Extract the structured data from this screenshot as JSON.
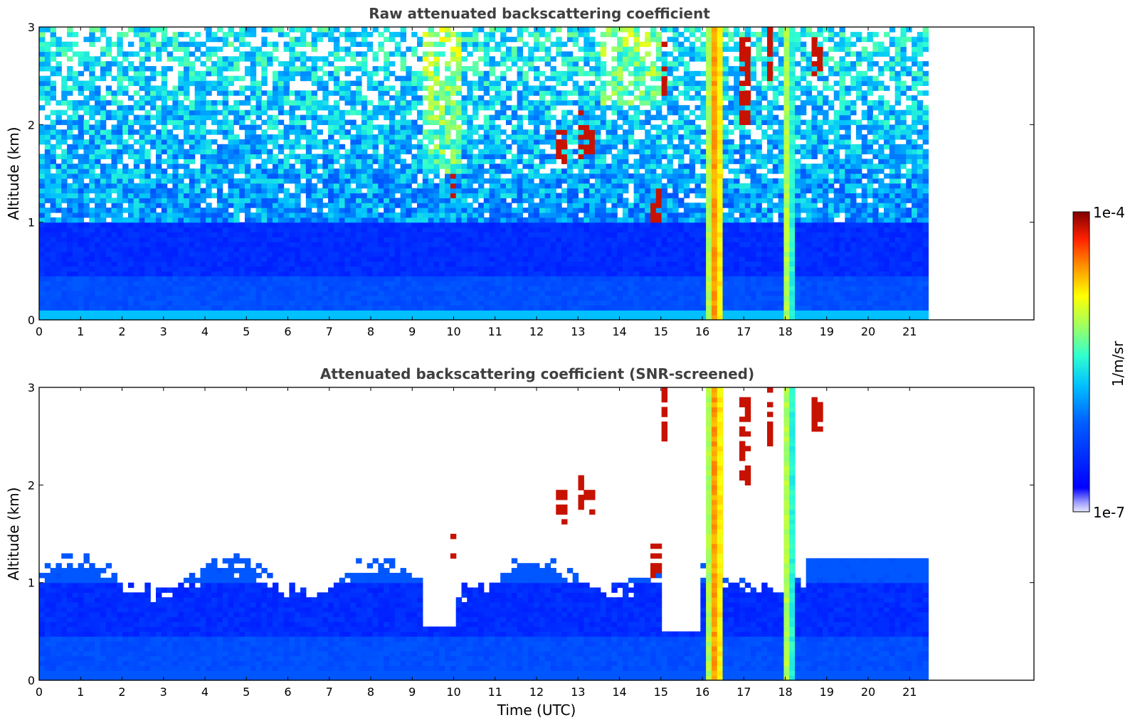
{
  "chart_data": [
    {
      "type": "heatmap",
      "title": "Raw attenuated backscattering coefficient",
      "xlabel": "",
      "ylabel": "Altitude (km)",
      "xlim": [
        0,
        24
      ],
      "ylim": [
        0,
        3
      ],
      "x_ticks": [
        "0",
        "1",
        "2",
        "3",
        "4",
        "5",
        "6",
        "7",
        "8",
        "9",
        "10",
        "11",
        "12",
        "13",
        "14",
        "15",
        "16",
        "17",
        "18",
        "19",
        "20",
        "21"
      ],
      "y_ticks": [
        "0",
        "1",
        "2",
        "3"
      ],
      "data_end_x": 21.45,
      "screened": false
    },
    {
      "type": "heatmap",
      "title": "Attenuated backscattering coefficient (SNR-screened)",
      "xlabel": "Time (UTC)",
      "ylabel": "Altitude (km)",
      "xlim": [
        0,
        24
      ],
      "ylim": [
        0,
        3
      ],
      "x_ticks": [
        "0",
        "1",
        "2",
        "3",
        "4",
        "5",
        "6",
        "7",
        "8",
        "9",
        "10",
        "11",
        "12",
        "13",
        "14",
        "15",
        "16",
        "17",
        "18",
        "19",
        "20",
        "21"
      ],
      "y_ticks": [
        "0",
        "1",
        "2",
        "3"
      ],
      "data_end_x": 21.45,
      "screened": true
    }
  ],
  "colorbar": {
    "label": "1/m/sr",
    "min_label": "1e-7",
    "max_label": "1e-4",
    "colormap": "jet",
    "scale": "log"
  }
}
